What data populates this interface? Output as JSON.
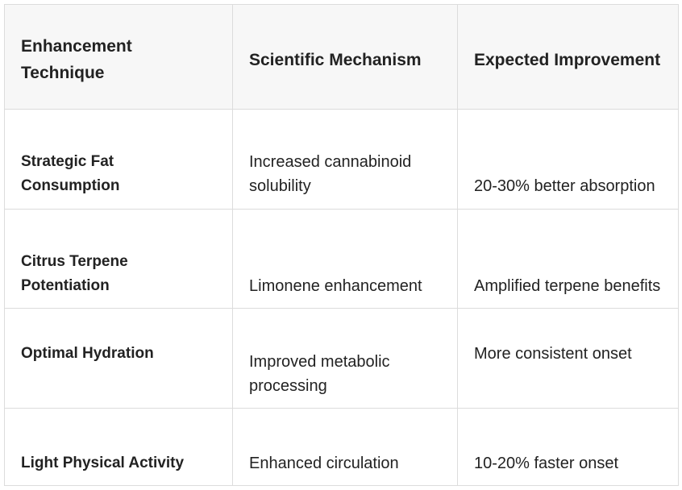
{
  "table": {
    "headers": [
      "Enhancement Technique",
      "Scientific Mechanism",
      "Expected Improvement"
    ],
    "rows": [
      {
        "technique": "Strategic Fat Consumption",
        "mechanism": "Increased cannabinoid solubility",
        "improvement": "20-30% better absorption"
      },
      {
        "technique": "Citrus Terpene Potentiation",
        "mechanism": "Limonene enhancement",
        "improvement": "Amplified terpene benefits"
      },
      {
        "technique": "Optimal Hydration",
        "mechanism": "Improved metabolic processing",
        "improvement": "More consistent onset"
      },
      {
        "technique": "Light Physical Activity",
        "mechanism": "Enhanced circulation",
        "improvement": "10-20% faster onset"
      }
    ]
  }
}
